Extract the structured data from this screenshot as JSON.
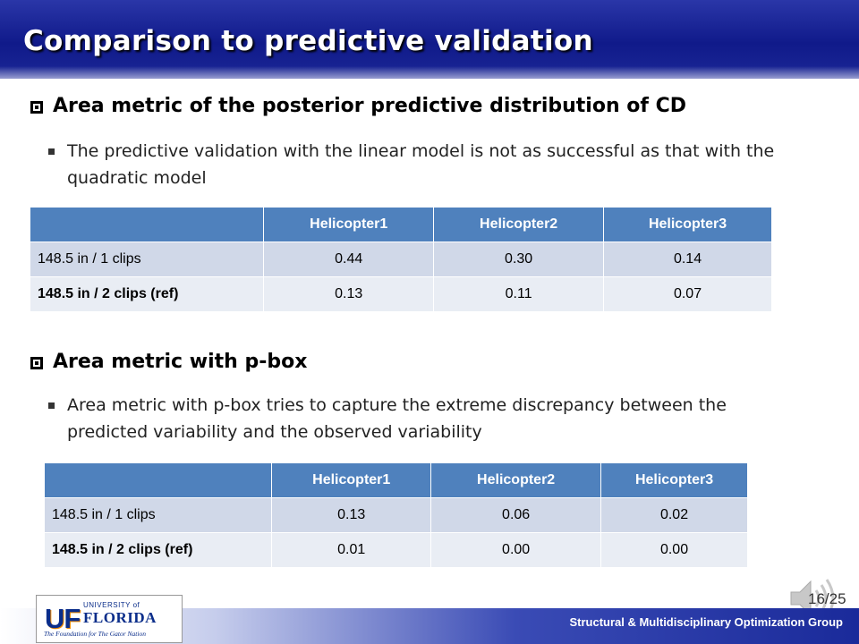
{
  "slide": {
    "title": "Comparison to predictive validation",
    "page_number": "16/25",
    "footer": "Structural & Multidisciplinary Optimization Group",
    "logo": {
      "uf": "UF",
      "university_of": "UNIVERSITY of",
      "florida": "FLORIDA",
      "tagline": "The Foundation for The Gator Nation"
    }
  },
  "section1": {
    "heading": "Area metric of the posterior predictive distribution of CD",
    "bullet": "The predictive validation with the linear model is not as successful as that with the quadratic model"
  },
  "section2": {
    "heading": "Area metric with p-box",
    "bullet": "Area metric with p-box tries to capture the extreme discrepancy between the predicted variability and the observed variability"
  },
  "table1": {
    "headers": [
      "",
      "Helicopter1",
      "Helicopter2",
      "Helicopter3"
    ],
    "rows": [
      [
        "148.5 in / 1 clips",
        "0.44",
        "0.30",
        "0.14"
      ],
      [
        "148.5 in / 2 clips (ref)",
        "0.13",
        "0.11",
        "0.07"
      ]
    ]
  },
  "table2": {
    "headers": [
      "",
      "Helicopter1",
      "Helicopter2",
      "Helicopter3"
    ],
    "rows": [
      [
        "148.5 in / 1 clips",
        "0.13",
        "0.06",
        "0.02"
      ],
      [
        "148.5 in / 2 clips (ref)",
        "0.01",
        "0.00",
        "0.00"
      ]
    ]
  },
  "colors": {
    "title_bar": "#101a8a",
    "table_header": "#4f81bd",
    "row_odd": "#d0d8e8",
    "row_even": "#e9edf4"
  },
  "icons": [
    "checkbox-bullet-icon",
    "square-bullet-icon",
    "speaker-icon"
  ]
}
